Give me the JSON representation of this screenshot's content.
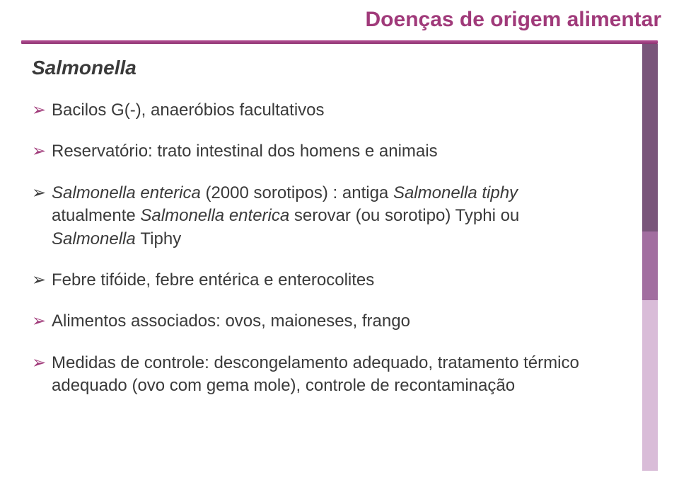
{
  "header": {
    "title": "Doenças de origem alimentar",
    "title_color": "#a03a7a",
    "title_fontsize": 30
  },
  "subtitle": {
    "text": "Salmonella",
    "color": "#3a3a3a",
    "fontsize": 28
  },
  "divider": {
    "color_top": "#b55196",
    "color_bottom": "#8e3472"
  },
  "right_stripe": {
    "bands": [
      {
        "color": "#79557a"
      },
      {
        "color": "#a26ea0"
      },
      {
        "color": "#d9bcd8"
      }
    ]
  },
  "bullets": {
    "arrow_glyph": "➢",
    "arrow_color_primary": "#a03a7a",
    "arrow_color_alt": "#3a3a3a",
    "text_color": "#3a3a3a",
    "text_fontsize": 24,
    "items": [
      {
        "arrow_style": "primary",
        "prefix": "Bacilos G(-), anaeróbios facultativos",
        "ital": "",
        "suffix": ""
      },
      {
        "arrow_style": "primary",
        "prefix": "Reservatório: trato intestinal dos homens e animais",
        "ital": "",
        "suffix": ""
      },
      {
        "arrow_style": "alt",
        "prefix": "",
        "ital": "Salmonella enterica ",
        "mid": "(2000 sorotipos) : antiga ",
        "ital2": "Salmonella tiphy",
        "mid2": " atualmente ",
        "ital3": "Salmonella enterica",
        "mid3": " serovar (ou sorotipo) Typhi ou ",
        "ital4": "Salmonella ",
        "suffix": "Tiphy"
      },
      {
        "arrow_style": "alt",
        "prefix": "Febre tifóide, febre entérica e enterocolites",
        "ital": "",
        "suffix": ""
      },
      {
        "arrow_style": "primary",
        "prefix": "Alimentos associados: ovos, maioneses, frango",
        "ital": "",
        "suffix": ""
      },
      {
        "arrow_style": "primary",
        "prefix": "Medidas de controle: descongelamento adequado, tratamento térmico adequado (ovo com gema mole), controle de recontaminação",
        "ital": "",
        "suffix": ""
      }
    ]
  }
}
